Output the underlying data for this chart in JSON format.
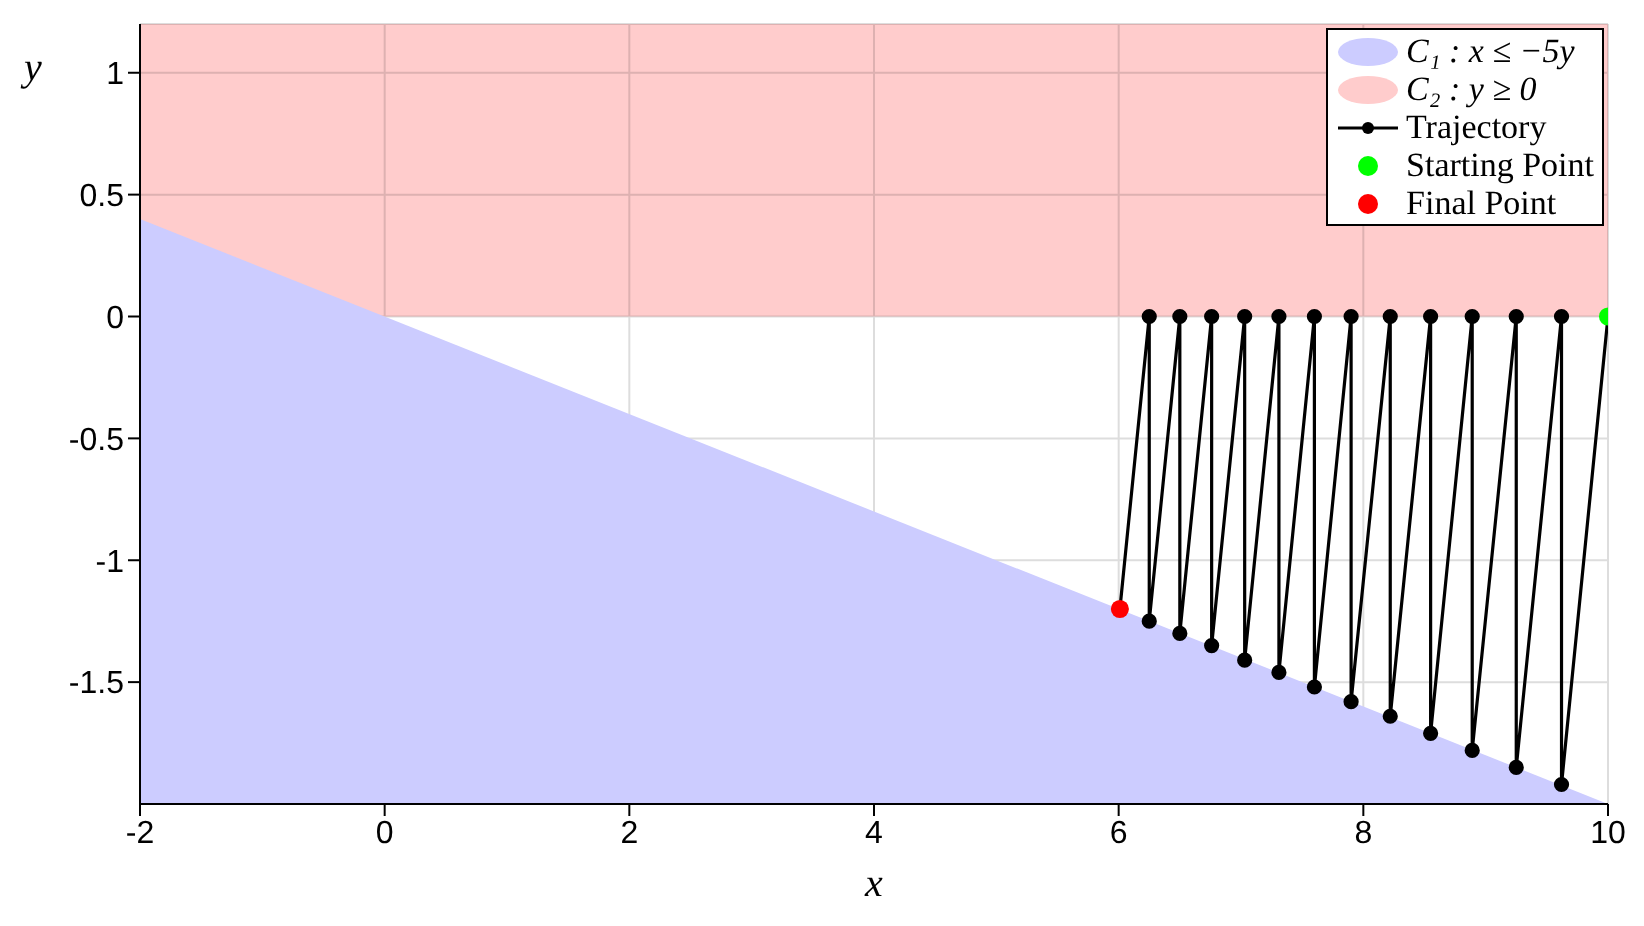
{
  "chart_data": {
    "type": "line",
    "xlabel": "x",
    "ylabel": "y",
    "xlim": [
      -2,
      10
    ],
    "ylim": [
      -2,
      1.2
    ],
    "xticks": [
      -2,
      0,
      2,
      4,
      6,
      8,
      10
    ],
    "yticks": [
      -1.5,
      -1,
      -0.5,
      0,
      0.5,
      1
    ],
    "grid": true,
    "legend": "top right",
    "bands": [
      {
        "axis": "y",
        "from": 0,
        "to": 1.2,
        "label": "C₂ : y ≥ 0",
        "color": "#ffcccc"
      }
    ],
    "series": [
      {
        "name": "C₁ : x ≤ −5y",
        "type": "area",
        "color": "#ccccff",
        "x": [
          -2,
          10
        ],
        "values": [
          0.4,
          -2
        ]
      },
      {
        "name": "Trajectory",
        "marker": "circle",
        "color": "#000000",
        "x": [
          10,
          9.62,
          9.62,
          9.25,
          9.25,
          8.89,
          8.89,
          8.55,
          8.55,
          8.22,
          8.22,
          7.9,
          7.9,
          7.6,
          7.6,
          7.31,
          7.31,
          7.03,
          7.03,
          6.76,
          6.76,
          6.5,
          6.5,
          6.25,
          6.25,
          6.01
        ],
        "values": [
          0,
          -1.92,
          0,
          -1.85,
          0,
          -1.78,
          0,
          -1.71,
          0,
          -1.64,
          0,
          -1.58,
          0,
          -1.52,
          0,
          -1.46,
          0,
          -1.41,
          0,
          -1.35,
          0,
          -1.3,
          0,
          -1.25,
          0,
          -1.2
        ]
      },
      {
        "name": "Starting Point",
        "type": "scatter",
        "color": "#00ff00",
        "x": [
          10
        ],
        "values": [
          0
        ]
      },
      {
        "name": "Final Point",
        "type": "scatter",
        "color": "#ff0000",
        "x": [
          6.01
        ],
        "values": [
          -1.2
        ]
      }
    ]
  }
}
